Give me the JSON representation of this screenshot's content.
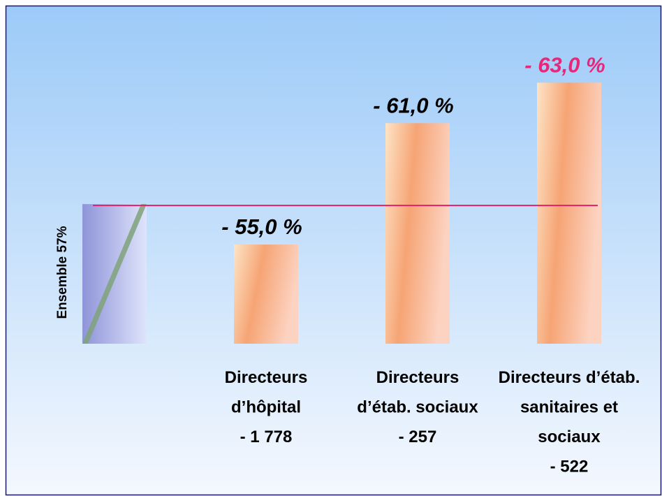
{
  "chart_data": {
    "type": "bar",
    "categories": [
      [
        "Directeurs",
        "d’hôpital",
        "- 1 778"
      ],
      [
        "Directeurs",
        "d’étab. sociaux",
        "- 257"
      ],
      [
        "Directeurs d’étab.",
        "sanitaires et",
        "sociaux",
        "- 522"
      ]
    ],
    "values": [
      -55,
      -61,
      -63
    ],
    "value_labels": [
      "- 55,0 %",
      "- 61,0 %",
      "- 63,0 %"
    ],
    "value_label_colors": [
      "#000000",
      "#000000",
      "#e8267a"
    ],
    "color": "#f5a870",
    "reference": {
      "label": "Ensemble  57%",
      "value": -57,
      "color": "#9aa3e0",
      "line_color": "#e0206a"
    },
    "ylim": [
      -50.1,
      -64.6
    ]
  }
}
